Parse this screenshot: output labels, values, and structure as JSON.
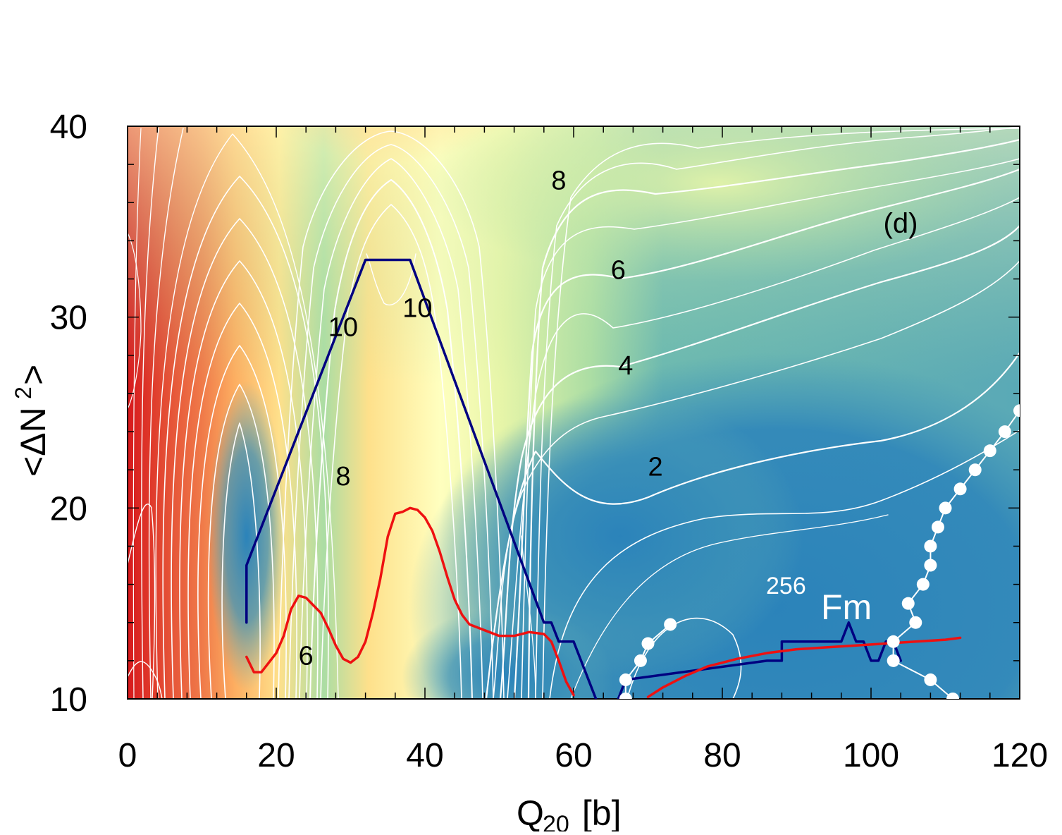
{
  "colors": {
    "path_blue": "#000080",
    "path_red": "#ee1111",
    "contour_white": "#ffffff",
    "scission_dots": "#ffffff",
    "map_high_red": "#d7191c",
    "map_orange": "#fdae61",
    "map_yellow": "#ffffbf",
    "map_green": "#abdda4",
    "map_blue": "#2b83ba"
  },
  "chart_data": {
    "type": "heatmap",
    "title": "",
    "panel_label": "(d)",
    "nucleus": {
      "mass_number": "256",
      "symbol": "Fm"
    },
    "xlabel": {
      "main": "Q",
      "sub": "20",
      "rest": " [b]"
    },
    "ylabel": {
      "pre": "<ΔN",
      "sup": "2",
      "post": ">"
    },
    "xlim": [
      0,
      120
    ],
    "ylim": [
      10,
      40
    ],
    "x_ticks": [
      0,
      20,
      40,
      60,
      80,
      100,
      120
    ],
    "y_ticks": [
      10,
      20,
      30,
      40
    ],
    "x_tick_labels": [
      "0",
      "20",
      "40",
      "60",
      "80",
      "100",
      "120"
    ],
    "y_tick_labels": [
      "10",
      "20",
      "30",
      "40"
    ],
    "contour_labels": [
      {
        "text": "8",
        "x": 58,
        "y": 36.7
      },
      {
        "text": "6",
        "x": 66,
        "y": 32.0
      },
      {
        "text": "10",
        "x": 29,
        "y": 29.0
      },
      {
        "text": "10",
        "x": 39,
        "y": 30.0
      },
      {
        "text": "4",
        "x": 67,
        "y": 27.0
      },
      {
        "text": "2",
        "x": 71,
        "y": 21.7
      },
      {
        "text": "8",
        "x": 29,
        "y": 21.2
      },
      {
        "text": "6",
        "x": 24,
        "y": 11.8
      }
    ],
    "series": [
      {
        "name": "least-action path (blue)",
        "color": "#000080",
        "points": [
          [
            16,
            14
          ],
          [
            16,
            17
          ],
          [
            32,
            33
          ],
          [
            38,
            33
          ],
          [
            56,
            14
          ],
          [
            57,
            14
          ],
          [
            58,
            13
          ],
          [
            60,
            13
          ],
          [
            63,
            10
          ]
        ]
      },
      {
        "name": "least-action path (blue, second branch)",
        "color": "#000080",
        "points": [
          [
            66,
            10
          ],
          [
            67,
            11
          ],
          [
            86,
            12
          ],
          [
            88,
            12
          ],
          [
            88,
            13
          ],
          [
            96,
            13
          ],
          [
            97,
            14
          ],
          [
            98,
            13
          ],
          [
            99,
            13
          ],
          [
            100,
            12
          ],
          [
            101,
            12
          ],
          [
            102,
            13
          ],
          [
            103,
            13
          ],
          [
            104,
            12
          ]
        ]
      },
      {
        "name": "least-energy path (red)",
        "color": "#ee1111",
        "points": [
          [
            16,
            12.2
          ],
          [
            17,
            11.4
          ],
          [
            18,
            11.4
          ],
          [
            19,
            11.9
          ],
          [
            20,
            12.4
          ],
          [
            21,
            13.3
          ],
          [
            22,
            14.7
          ],
          [
            23,
            15.4
          ],
          [
            24,
            15.3
          ],
          [
            25,
            14.9
          ],
          [
            26,
            14.5
          ],
          [
            27,
            13.7
          ],
          [
            28,
            12.8
          ],
          [
            29,
            12.1
          ],
          [
            30,
            11.9
          ],
          [
            31,
            12.2
          ],
          [
            32,
            13.0
          ],
          [
            33,
            14.5
          ],
          [
            34,
            16.3
          ],
          [
            35,
            18.5
          ],
          [
            36,
            19.7
          ],
          [
            37,
            19.8
          ],
          [
            38,
            20.0
          ],
          [
            39,
            19.9
          ],
          [
            40,
            19.5
          ],
          [
            41,
            18.8
          ],
          [
            42,
            17.7
          ],
          [
            43,
            16.4
          ],
          [
            44,
            15.2
          ],
          [
            45,
            14.4
          ],
          [
            46,
            13.9
          ],
          [
            48,
            13.6
          ],
          [
            50,
            13.3
          ],
          [
            52,
            13.3
          ],
          [
            54,
            13.5
          ],
          [
            56,
            13.4
          ],
          [
            57,
            13.0
          ],
          [
            58,
            12.0
          ],
          [
            59,
            10.9
          ],
          [
            60,
            10.2
          ]
        ]
      },
      {
        "name": "least-energy path (red, second branch)",
        "color": "#ee1111",
        "points": [
          [
            70,
            10.1
          ],
          [
            72,
            10.6
          ],
          [
            75,
            11.2
          ],
          [
            78,
            11.7
          ],
          [
            82,
            12.1
          ],
          [
            86,
            12.4
          ],
          [
            90,
            12.6
          ],
          [
            94,
            12.7
          ],
          [
            98,
            12.8
          ],
          [
            102,
            12.9
          ],
          [
            106,
            13.0
          ],
          [
            110,
            13.1
          ],
          [
            112,
            13.2
          ]
        ]
      },
      {
        "name": "scission line (dots)",
        "color": "#ffffff",
        "points": [
          [
            67,
            10.0
          ],
          [
            67,
            11.0
          ],
          [
            69,
            12.0
          ],
          [
            70,
            12.9
          ],
          [
            73,
            13.9
          ],
          [
            103,
            12.0
          ],
          [
            103,
            13.0
          ],
          [
            106,
            14.0
          ],
          [
            105,
            15.0
          ],
          [
            107,
            16.0
          ],
          [
            108,
            17.0
          ],
          [
            108,
            18.0
          ],
          [
            109,
            19.0
          ],
          [
            110,
            20.0
          ],
          [
            112,
            21.0
          ],
          [
            114,
            22.0
          ],
          [
            116,
            23.0
          ],
          [
            118,
            24.0
          ],
          [
            120,
            25.1
          ],
          [
            108,
            11.0
          ],
          [
            111,
            10.0
          ]
        ]
      }
    ]
  }
}
